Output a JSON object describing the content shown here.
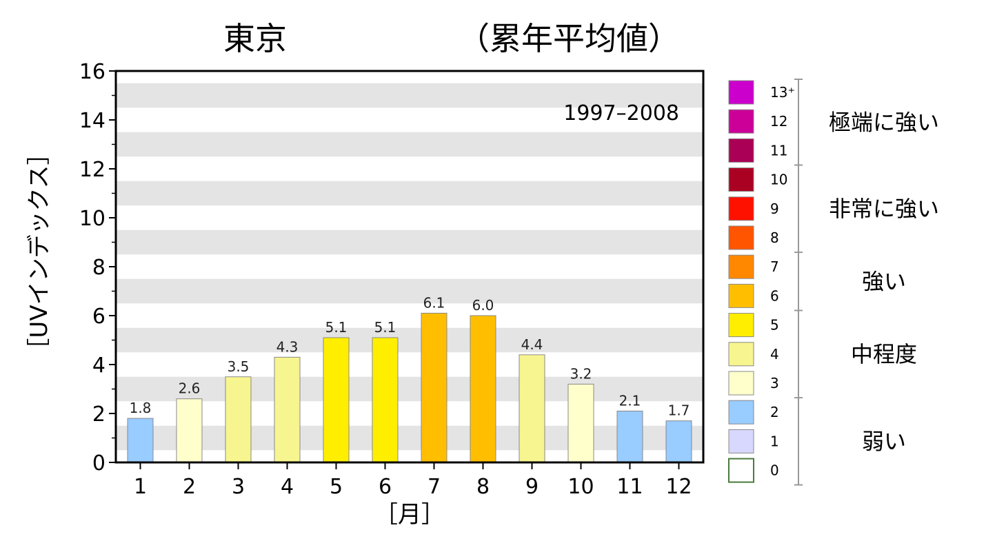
{
  "title_left": "東京",
  "title_right": "（累年平均値）",
  "chart_data": {
    "type": "bar",
    "period": "1997–2008",
    "xlabel": "［月］",
    "ylabel": "［UVインデックス］",
    "ylim": [
      0,
      16
    ],
    "yticks": [
      "0",
      "2",
      "4",
      "6",
      "8",
      "10",
      "12",
      "14",
      "16"
    ],
    "categories": [
      "1",
      "2",
      "3",
      "4",
      "5",
      "6",
      "7",
      "8",
      "9",
      "10",
      "11",
      "12"
    ],
    "values": [
      1.8,
      2.6,
      3.5,
      4.3,
      5.1,
      5.1,
      6.1,
      6.0,
      4.4,
      3.2,
      2.1,
      1.7
    ],
    "value_labels": [
      "1.8",
      "2.6",
      "3.5",
      "4.3",
      "5.1",
      "5.1",
      "6.1",
      "6.0",
      "4.4",
      "3.2",
      "2.1",
      "1.7"
    ],
    "grid": "alternating horizontal bands",
    "legend": {
      "placement": "right",
      "levels": [
        {
          "label": "13⁺",
          "color": "#cc00cc"
        },
        {
          "label": "12",
          "color": "#cc0099"
        },
        {
          "label": "11",
          "color": "#aa0055"
        },
        {
          "label": "10",
          "color": "#aa0022"
        },
        {
          "label": "9",
          "color": "#ff1100"
        },
        {
          "label": "8",
          "color": "#ff5500"
        },
        {
          "label": "7",
          "color": "#ff8800"
        },
        {
          "label": "6",
          "color": "#ffbf00"
        },
        {
          "label": "5",
          "color": "#ffee00"
        },
        {
          "label": "4",
          "color": "#f7f58f"
        },
        {
          "label": "3",
          "color": "#ffffcc"
        },
        {
          "label": "2",
          "color": "#99ccff"
        },
        {
          "label": "1",
          "color": "#d8d8ff"
        },
        {
          "label": "0",
          "color": "#ffffff"
        }
      ],
      "categories": [
        "極端に強い",
        "非常に強い",
        "強い",
        "中程度",
        "弱い"
      ]
    }
  }
}
